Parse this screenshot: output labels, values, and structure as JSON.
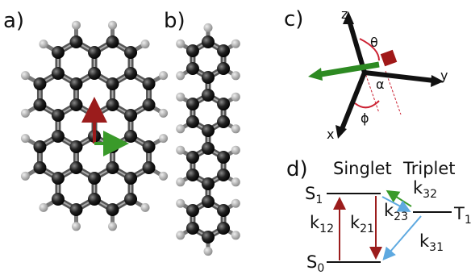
{
  "panels": {
    "a": "a)",
    "b": "b)",
    "c": "c)",
    "d": "d)"
  },
  "axes": {
    "z": "z",
    "y": "y",
    "x": "x"
  },
  "angles": {
    "theta": "θ",
    "alpha": "α",
    "phi": "ϕ"
  },
  "states": {
    "singlet": "Singlet",
    "triplet": "Triplet",
    "s1": {
      "base": "S",
      "sub": "1"
    },
    "s0": {
      "base": "S",
      "sub": "0"
    },
    "t1": {
      "base": "T",
      "sub": "1"
    }
  },
  "rates": {
    "k12": {
      "base": "k",
      "sub": "12"
    },
    "k21": {
      "base": "k",
      "sub": "21"
    },
    "k23": {
      "base": "k",
      "sub": "23"
    },
    "k32": {
      "base": "k",
      "sub": "32"
    },
    "k31": {
      "base": "k",
      "sub": "31"
    }
  }
}
